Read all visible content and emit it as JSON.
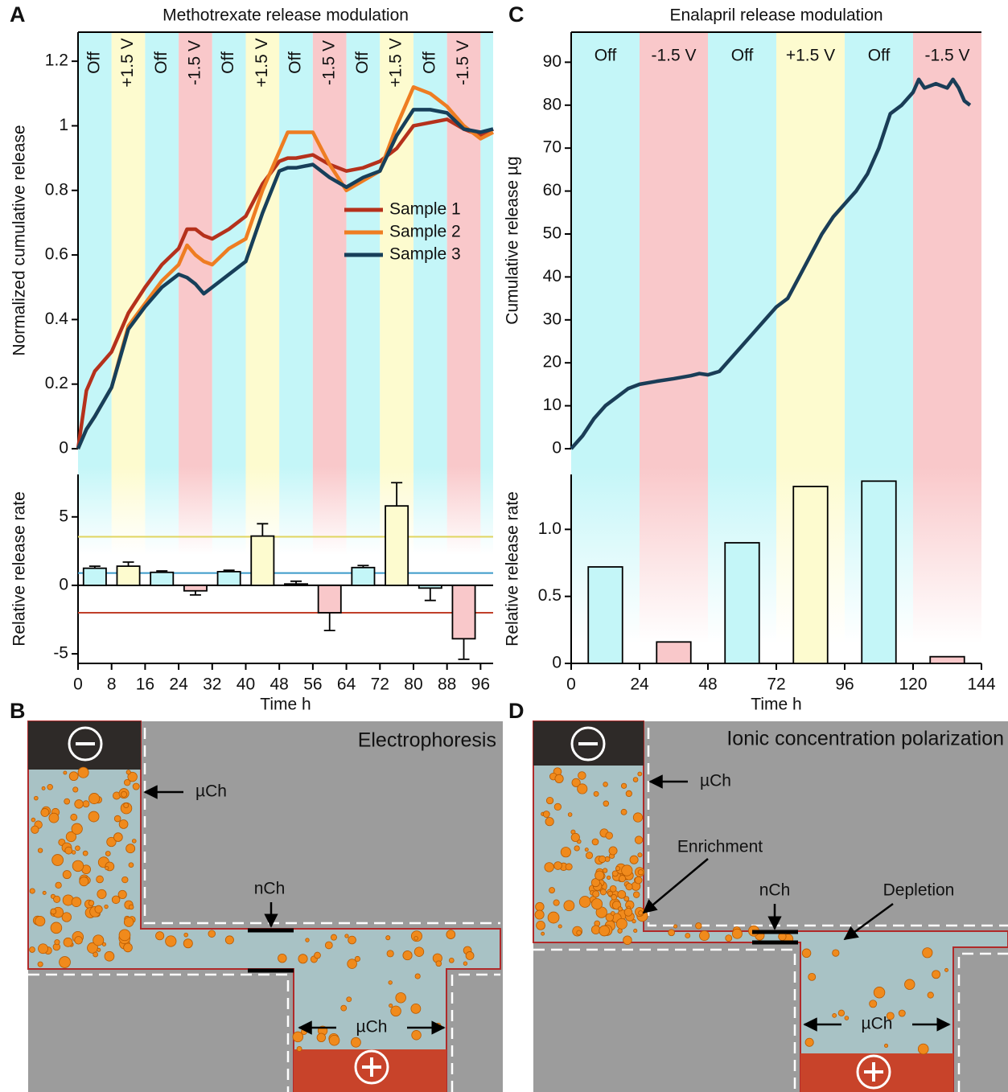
{
  "panel_labels": [
    "A",
    "B",
    "C",
    "D"
  ],
  "chart_data": [
    {
      "type": "line",
      "title": "Methotrexate release modulation",
      "ylabel": "Normalized cumulative release",
      "xlim": [
        0,
        99
      ],
      "ylim": [
        0,
        1.29
      ],
      "yticks": [
        0,
        0.2,
        0.4,
        0.6,
        0.8,
        1,
        1.2
      ],
      "bands": [
        {
          "label": "Off",
          "start": 0,
          "end": 8,
          "color": "#c4f6f8"
        },
        {
          "label": "+1.5 V",
          "start": 8,
          "end": 16,
          "color": "#fdfbcf"
        },
        {
          "label": "Off",
          "start": 16,
          "end": 24,
          "color": "#c4f6f8"
        },
        {
          "label": "-1.5 V",
          "start": 24,
          "end": 32,
          "color": "#f9c8ca"
        },
        {
          "label": "Off",
          "start": 32,
          "end": 40,
          "color": "#c4f6f8"
        },
        {
          "label": "+1.5 V",
          "start": 40,
          "end": 48,
          "color": "#fdfbcf"
        },
        {
          "label": "Off",
          "start": 48,
          "end": 56,
          "color": "#c4f6f8"
        },
        {
          "label": "-1.5 V",
          "start": 56,
          "end": 64,
          "color": "#f9c8ca"
        },
        {
          "label": "Off",
          "start": 64,
          "end": 72,
          "color": "#c4f6f8"
        },
        {
          "label": "+1.5 V",
          "start": 72,
          "end": 80,
          "color": "#fdfbcf"
        },
        {
          "label": "Off",
          "start": 80,
          "end": 88,
          "color": "#c4f6f8"
        },
        {
          "label": "-1.5 V",
          "start": 88,
          "end": 96,
          "color": "#f9c8ca"
        },
        {
          "label": null,
          "start": 96,
          "end": 99,
          "color": "#c4f6f8"
        }
      ],
      "x": [
        0,
        2,
        4,
        8,
        12,
        16,
        20,
        24,
        26,
        28,
        30,
        32,
        36,
        40,
        44,
        48,
        50,
        52,
        56,
        60,
        64,
        68,
        72,
        76,
        80,
        84,
        88,
        92,
        96,
        99
      ],
      "series": [
        {
          "name": "Sample 1",
          "color": "#b5311c",
          "values": [
            0,
            0.18,
            0.24,
            0.3,
            0.42,
            0.5,
            0.57,
            0.62,
            0.68,
            0.68,
            0.66,
            0.65,
            0.68,
            0.72,
            0.82,
            0.89,
            0.9,
            0.9,
            0.91,
            0.88,
            0.86,
            0.87,
            0.89,
            0.93,
            1.0,
            1.01,
            1.02,
            0.99,
            0.97,
            0.99
          ]
        },
        {
          "name": "Sample 2",
          "color": "#ee7d22",
          "values": [
            0,
            0.06,
            0.1,
            0.19,
            0.38,
            0.45,
            0.52,
            0.57,
            0.63,
            0.6,
            0.58,
            0.57,
            0.62,
            0.65,
            0.8,
            0.92,
            0.98,
            0.98,
            0.98,
            0.88,
            0.8,
            0.83,
            0.86,
            1.0,
            1.12,
            1.1,
            1.06,
            1.0,
            0.96,
            0.98
          ]
        },
        {
          "name": "Sample 3",
          "color": "#173f5a",
          "values": [
            0,
            0.06,
            0.1,
            0.19,
            0.37,
            0.44,
            0.5,
            0.54,
            0.53,
            0.51,
            0.48,
            0.5,
            0.54,
            0.58,
            0.73,
            0.86,
            0.87,
            0.87,
            0.88,
            0.84,
            0.81,
            0.84,
            0.86,
            0.97,
            1.05,
            1.05,
            1.04,
            0.99,
            0.98,
            0.99
          ]
        }
      ],
      "legend": "right"
    },
    {
      "type": "bar",
      "ylabel": "Relative release rate",
      "xlabel": "Time h",
      "xlim": [
        0,
        99
      ],
      "xticks": [
        0,
        8,
        16,
        24,
        32,
        40,
        48,
        56,
        64,
        72,
        80,
        88,
        96
      ],
      "ylim": [
        -5.7,
        8.1
      ],
      "yticks": [
        -5,
        0,
        5
      ],
      "x": [
        4,
        12,
        20,
        28,
        36,
        44,
        52,
        60,
        68,
        76,
        84,
        92
      ],
      "values": [
        1.25,
        1.4,
        0.95,
        -0.4,
        1.0,
        3.6,
        0.1,
        -2.0,
        1.3,
        5.8,
        -0.2,
        -3.9
      ],
      "errors": [
        0.15,
        0.3,
        0.1,
        0.3,
        0.1,
        0.9,
        0.2,
        1.3,
        0.15,
        1.7,
        0.9,
        1.5
      ],
      "reference_lines": [
        {
          "value": 3.55,
          "color": "#e0d560"
        },
        {
          "value": 0.9,
          "color": "#3a9ac9"
        },
        {
          "value": -2.0,
          "color": "#c0402a"
        }
      ]
    },
    {
      "type": "line",
      "title": "Enalapril release modulation",
      "ylabel": "Cumulative release µg",
      "xlim": [
        0,
        144
      ],
      "ylim": [
        0,
        97
      ],
      "yticks": [
        0,
        10,
        20,
        30,
        40,
        50,
        60,
        70,
        80,
        90
      ],
      "bands": [
        {
          "label": "Off",
          "start": 0,
          "end": 24,
          "color": "#c4f6f8"
        },
        {
          "label": "-1.5 V",
          "start": 24,
          "end": 48,
          "color": "#f9c8ca"
        },
        {
          "label": "Off",
          "start": 48,
          "end": 72,
          "color": "#c4f6f8"
        },
        {
          "label": "+1.5 V",
          "start": 72,
          "end": 96,
          "color": "#fdfbcf"
        },
        {
          "label": "Off",
          "start": 96,
          "end": 120,
          "color": "#c4f6f8"
        },
        {
          "label": "-1.5 V",
          "start": 120,
          "end": 144,
          "color": "#f9c8ca"
        }
      ],
      "x": [
        0,
        4,
        8,
        12,
        16,
        20,
        24,
        30,
        36,
        42,
        45,
        48,
        52,
        56,
        60,
        64,
        68,
        72,
        76,
        80,
        84,
        88,
        92,
        96,
        100,
        104,
        108,
        112,
        116,
        120,
        122,
        124,
        128,
        132,
        134,
        136,
        138,
        140
      ],
      "color": "#1a3d57",
      "values": [
        0,
        3,
        7,
        10,
        12,
        14,
        15,
        15.7,
        16.3,
        17,
        17.5,
        17.2,
        18,
        21,
        24,
        27,
        30,
        33,
        35,
        40,
        45,
        50,
        54,
        57,
        60,
        64,
        70,
        78,
        80,
        83,
        86,
        84,
        85,
        84,
        86,
        84,
        81,
        80
      ]
    },
    {
      "type": "bar",
      "ylabel": "Relative release rate",
      "xlabel": "Time h",
      "xlim": [
        0,
        144
      ],
      "xticks": [
        0,
        24,
        48,
        72,
        96,
        120,
        144
      ],
      "ylim": [
        0,
        1.41
      ],
      "yticks": [
        0,
        0.5,
        {
          "value": 1,
          "label": "1.0"
        }
      ],
      "x": [
        12,
        36,
        60,
        84,
        108,
        132
      ],
      "values": [
        0.72,
        0.16,
        0.9,
        1.32,
        1.36,
        0.05
      ]
    }
  ],
  "diagram_b": {
    "title": "Electrophoresis",
    "labels": [
      "µCh",
      "nCh",
      "µCh"
    ]
  },
  "diagram_d": {
    "title": "Ionic concentration polarization",
    "labels": [
      "µCh",
      "Enrichment",
      "nCh",
      "Depletion",
      "µCh"
    ]
  }
}
